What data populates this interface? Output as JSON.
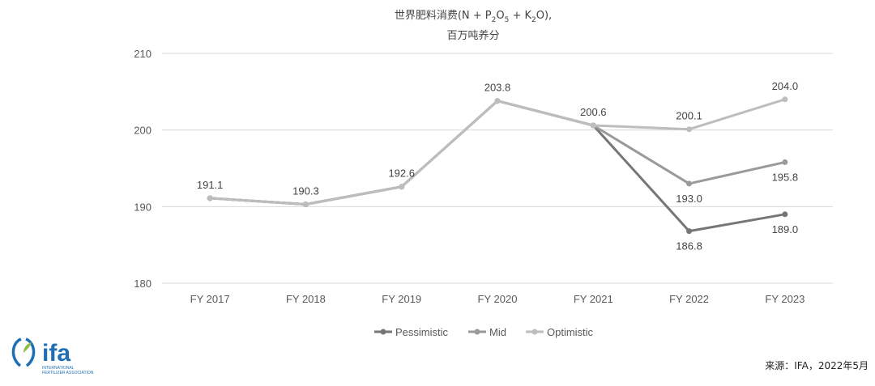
{
  "title": {
    "prefix": "世界肥料消费(N + P",
    "p_sub": "2",
    "mid1": "O",
    "o_sub": "5",
    "mid2": " + K",
    "k_sub": "2",
    "suffix": "O),",
    "line2": "百万吨养分"
  },
  "logo": {
    "text": "ifa",
    "subtext1": "INTERNATIONAL",
    "subtext2": "FERTILIZER ASSOCIATION"
  },
  "source": "来源：IFA，2022年5月",
  "colors": {
    "pessimistic": "#767676",
    "mid": "#9a9a9a",
    "optimistic": "#bdbdbd",
    "grid": "#d9d9d9",
    "logo_blue": "#1f6fb5",
    "logo_green": "#8cbf3f"
  },
  "chart_data": {
    "type": "line",
    "categories": [
      "FY 2017",
      "FY 2018",
      "FY 2019",
      "FY 2020",
      "FY 2021",
      "FY 2022",
      "FY 2023"
    ],
    "ylim": [
      180,
      210
    ],
    "yticks": [
      180,
      190,
      200,
      210
    ],
    "grid": true,
    "legend": "bottom",
    "series": [
      {
        "name": "Pessimistic",
        "values": [
          191.1,
          190.3,
          192.6,
          203.8,
          200.6,
          186.8,
          189.0
        ],
        "labels": [
          "",
          "",
          "",
          "",
          "",
          "186.8",
          "189.0"
        ]
      },
      {
        "name": "Mid",
        "values": [
          191.1,
          190.3,
          192.6,
          203.8,
          200.6,
          193.0,
          195.8
        ],
        "labels": [
          "",
          "",
          "",
          "",
          "",
          "193.0",
          "195.8"
        ]
      },
      {
        "name": "Optimistic",
        "values": [
          191.1,
          190.3,
          192.6,
          203.8,
          200.6,
          200.1,
          204.0
        ],
        "labels": [
          "191.1",
          "190.3",
          "192.6",
          "203.8",
          "200.6",
          "200.1",
          "204.0"
        ]
      }
    ]
  }
}
